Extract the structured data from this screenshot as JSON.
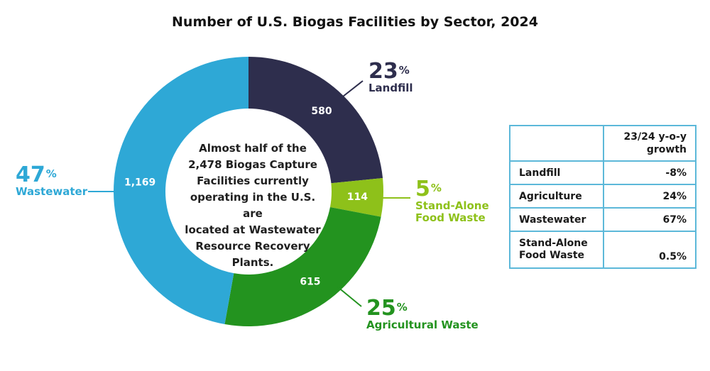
{
  "chart_data": {
    "type": "pie",
    "title": "Number of U.S. Biogas Facilities by Sector, 2024",
    "center_text": "Almost half of the 2,478 Biogas Capture Facilities currently operating in the U.S. are located at Wastewater Resource Recovery Plants.",
    "center_lines": [
      "Almost half of the",
      "2,478 Biogas Capture",
      "Facilities currently",
      "operating in the U.S. are",
      "located at Wastewater",
      "Resource Recovery",
      "Plants."
    ],
    "slices": [
      {
        "key": "landfill",
        "value": 580,
        "value_label": "580",
        "percent": "23",
        "label": "Landfill",
        "color": "#2e2e4d"
      },
      {
        "key": "food",
        "value": 114,
        "value_label": "114",
        "percent": "5",
        "label": "Stand-Alone Food Waste",
        "color": "#8ec11a"
      },
      {
        "key": "agri",
        "value": 615,
        "value_label": "615",
        "percent": "25",
        "label": "Agricultural Waste",
        "color": "#23931f"
      },
      {
        "key": "waste",
        "value": 1169,
        "value_label": "1,169",
        "percent": "47",
        "label": "Wastewater",
        "color": "#2ea8d6"
      }
    ],
    "callout_labels": {
      "landfill": [
        "Landfill"
      ],
      "food": [
        "Stand-Alone",
        "Food Waste"
      ],
      "agri": [
        "Agricultural Waste"
      ],
      "waste": [
        "Wastewater"
      ]
    },
    "percent_symbol": "%",
    "table": {
      "header_lines": [
        "23/24 y-o-y",
        "growth"
      ],
      "rows": [
        {
          "sector_lines": [
            "Landfill"
          ],
          "growth": "-8%"
        },
        {
          "sector_lines": [
            "Agriculture"
          ],
          "growth": "24%"
        },
        {
          "sector_lines": [
            "Wastewater"
          ],
          "growth": "67%"
        },
        {
          "sector_lines": [
            "Stand-Alone",
            "Food Waste"
          ],
          "growth": "0.5%"
        }
      ]
    }
  }
}
